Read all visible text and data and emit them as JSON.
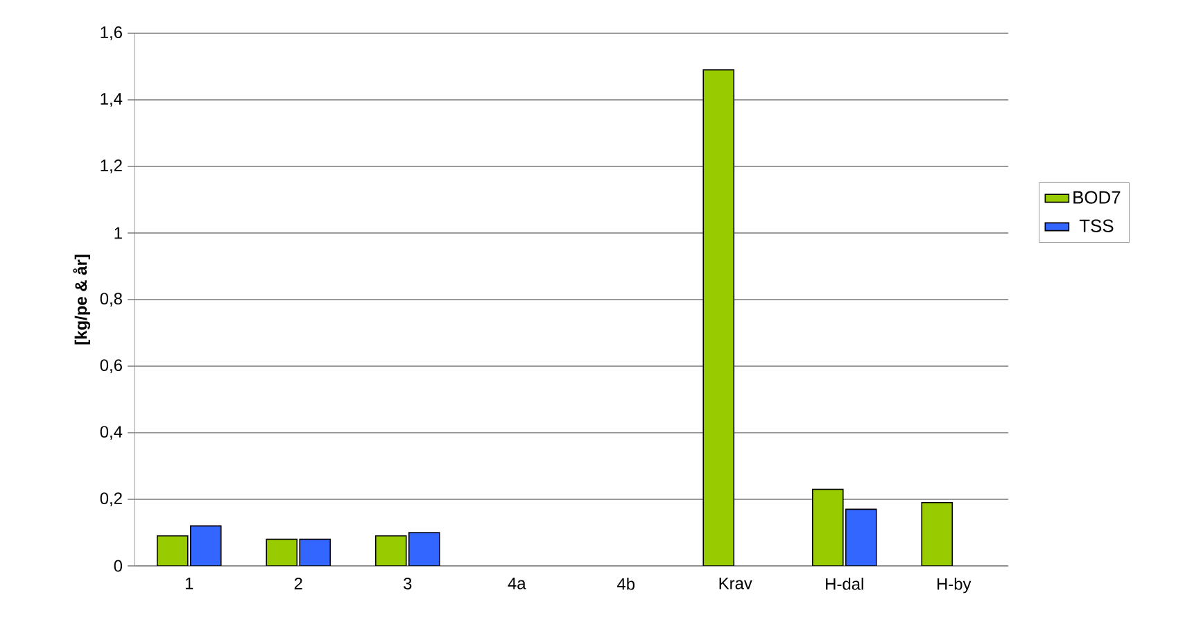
{
  "chart_data": {
    "type": "bar",
    "ylabel": "[kg/pe & år]",
    "categories": [
      "1",
      "2",
      "3",
      "4a",
      "4b",
      "Krav",
      "H-dal",
      "H-by"
    ],
    "series": [
      {
        "name": "BOD7",
        "color": "#99cc00",
        "values": [
          0.09,
          0.08,
          0.09,
          null,
          null,
          1.49,
          0.23,
          0.19
        ]
      },
      {
        "name": "TSS",
        "color": "#3366ff",
        "values": [
          0.12,
          0.08,
          0.1,
          null,
          null,
          null,
          0.17,
          null
        ]
      }
    ],
    "ylim": [
      0,
      1.6
    ],
    "yticks": [
      0,
      {
        "value": 0.2,
        "label": "0,2"
      },
      {
        "value": 0.4,
        "label": "0,4"
      },
      {
        "value": 0.6,
        "label": "0,6"
      },
      {
        "value": 0.8,
        "label": "0,8"
      },
      1,
      {
        "value": 1.2,
        "label": "1,2"
      },
      {
        "value": 1.4,
        "label": "1,4"
      },
      {
        "value": 1.6,
        "label": "1,6"
      }
    ],
    "grid": "y",
    "legend": "right"
  }
}
